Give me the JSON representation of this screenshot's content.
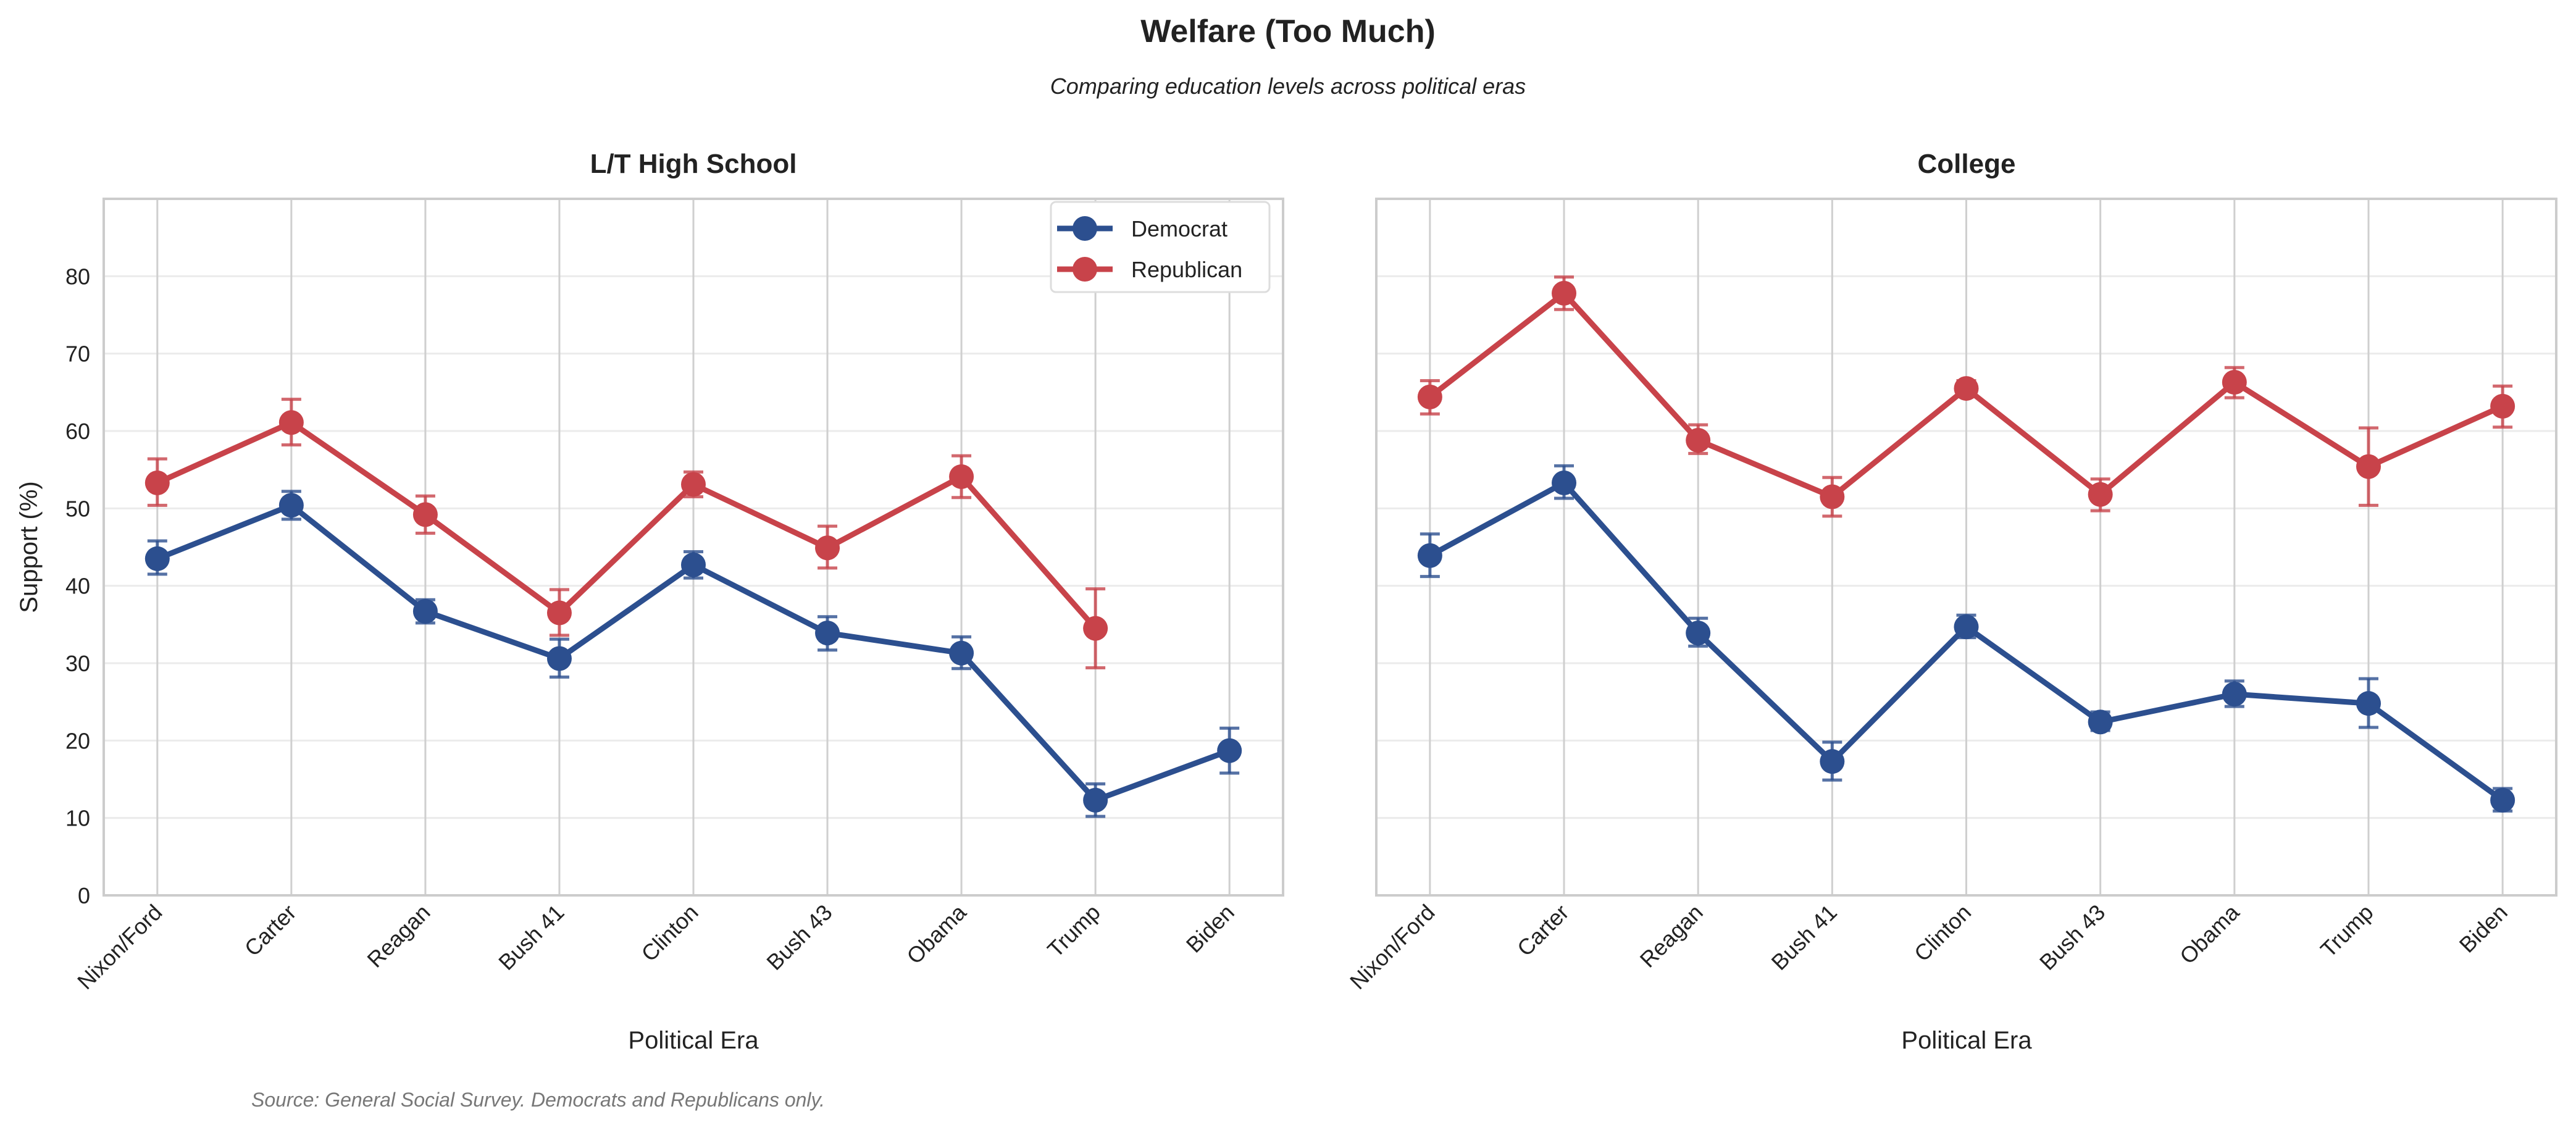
{
  "title": "Welfare (Too Much)",
  "subtitle": "Comparing education levels across political eras",
  "source": "Source: General Social Survey. Democrats and Republicans only.",
  "colors": {
    "Democrat": "#2c4f8f",
    "Republican": "#c8434a"
  },
  "chart_data": [
    {
      "type": "line",
      "title": "L/T High School",
      "xlabel": "Political Era",
      "ylabel": "Support (%)",
      "ylim": [
        0,
        90
      ],
      "yticks": [
        0,
        10,
        20,
        30,
        40,
        50,
        60,
        70,
        80
      ],
      "grid": true,
      "legend": "top-right",
      "categories": [
        "Nixon/Ford",
        "Carter",
        "Reagan",
        "Bush 41",
        "Clinton",
        "Bush 43",
        "Obama",
        "Trump",
        "Biden"
      ],
      "series": [
        {
          "name": "Democrat",
          "values": [
            43.5,
            50.4,
            36.7,
            30.6,
            42.7,
            33.9,
            31.3,
            12.3,
            18.7
          ],
          "lower": [
            41.5,
            48.6,
            35.2,
            28.2,
            41.0,
            31.7,
            29.3,
            10.2,
            15.8
          ],
          "upper": [
            45.8,
            52.2,
            38.2,
            33.1,
            44.4,
            36.0,
            33.4,
            14.4,
            21.6
          ]
        },
        {
          "name": "Republican",
          "values": [
            53.3,
            61.1,
            49.2,
            36.5,
            53.1,
            44.9,
            54.1,
            34.5,
            null
          ],
          "lower": [
            50.4,
            58.2,
            46.8,
            33.6,
            51.5,
            42.3,
            51.4,
            29.4,
            null
          ],
          "upper": [
            56.4,
            64.1,
            51.6,
            39.5,
            54.7,
            47.7,
            56.8,
            39.6,
            null
          ]
        }
      ]
    },
    {
      "type": "line",
      "title": "College",
      "xlabel": "Political Era",
      "ylim": [
        0,
        90
      ],
      "grid": true,
      "categories": [
        "Nixon/Ford",
        "Carter",
        "Reagan",
        "Bush 41",
        "Clinton",
        "Bush 43",
        "Obama",
        "Trump",
        "Biden"
      ],
      "series": [
        {
          "name": "Democrat",
          "values": [
            43.9,
            53.3,
            33.9,
            17.3,
            34.7,
            22.4,
            26.0,
            24.8,
            12.3
          ],
          "lower": [
            41.2,
            51.3,
            32.2,
            14.9,
            33.3,
            21.3,
            24.4,
            21.7,
            10.9
          ],
          "upper": [
            46.7,
            55.5,
            35.8,
            19.8,
            36.2,
            23.7,
            27.7,
            28.0,
            13.8
          ]
        },
        {
          "name": "Republican",
          "values": [
            64.4,
            77.8,
            58.8,
            51.5,
            65.5,
            51.8,
            66.3,
            55.4,
            63.2
          ],
          "lower": [
            62.2,
            75.7,
            57.1,
            49.0,
            64.6,
            49.7,
            64.3,
            50.4,
            60.5
          ],
          "upper": [
            66.5,
            79.9,
            60.8,
            54.0,
            66.5,
            53.8,
            68.2,
            60.4,
            65.8
          ]
        }
      ]
    }
  ]
}
